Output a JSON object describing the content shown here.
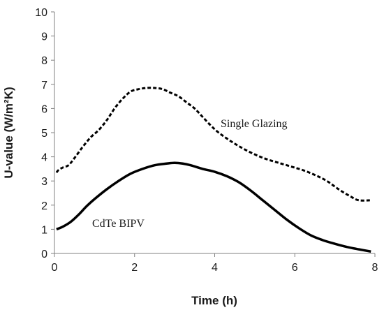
{
  "chart_data": {
    "type": "line",
    "title": "",
    "xlabel": "Time (h)",
    "ylabel": "U-value (W/m²K)",
    "xlim": [
      0,
      8
    ],
    "ylim": [
      0,
      10
    ],
    "xticks": [
      0,
      2,
      4,
      6,
      8
    ],
    "yticks": [
      0,
      1,
      2,
      3,
      4,
      5,
      6,
      7,
      8,
      9,
      10
    ],
    "grid": false,
    "legend": "none",
    "series": [
      {
        "name": "Single Glazing",
        "style": "dashed",
        "color": "#000000",
        "x": [
          0.05,
          0.1,
          0.2,
          0.35,
          0.5,
          0.7,
          0.9,
          1.1,
          1.3,
          1.5,
          1.7,
          1.9,
          2.1,
          2.3,
          2.5,
          2.7,
          2.9,
          3.1,
          3.3,
          3.5,
          3.7,
          3.9,
          4.1,
          4.4,
          4.7,
          5.0,
          5.3,
          5.6,
          5.9,
          6.2,
          6.5,
          6.8,
          7.1,
          7.4,
          7.6,
          7.9
        ],
        "y": [
          3.35,
          3.45,
          3.55,
          3.65,
          3.95,
          4.4,
          4.8,
          5.1,
          5.5,
          6.0,
          6.4,
          6.7,
          6.8,
          6.85,
          6.85,
          6.8,
          6.65,
          6.5,
          6.25,
          6.0,
          5.65,
          5.3,
          5.0,
          4.65,
          4.35,
          4.1,
          3.9,
          3.75,
          3.6,
          3.45,
          3.25,
          3.0,
          2.65,
          2.35,
          2.2,
          2.2
        ]
      },
      {
        "name": "CdTe BIPV",
        "style": "solid",
        "color": "#000000",
        "x": [
          0.05,
          0.2,
          0.4,
          0.6,
          0.8,
          1.0,
          1.3,
          1.6,
          1.9,
          2.2,
          2.5,
          2.8,
          3.0,
          3.2,
          3.4,
          3.7,
          4.0,
          4.3,
          4.6,
          4.9,
          5.2,
          5.5,
          5.8,
          6.1,
          6.4,
          6.7,
          7.0,
          7.3,
          7.6,
          7.9
        ],
        "y": [
          1.0,
          1.1,
          1.3,
          1.6,
          1.95,
          2.25,
          2.65,
          3.0,
          3.3,
          3.5,
          3.65,
          3.72,
          3.75,
          3.72,
          3.65,
          3.5,
          3.38,
          3.2,
          2.95,
          2.6,
          2.2,
          1.8,
          1.4,
          1.05,
          0.75,
          0.55,
          0.4,
          0.27,
          0.17,
          0.08
        ]
      }
    ],
    "annotations": [
      "Single Glazing",
      "CdTe BIPV"
    ]
  }
}
